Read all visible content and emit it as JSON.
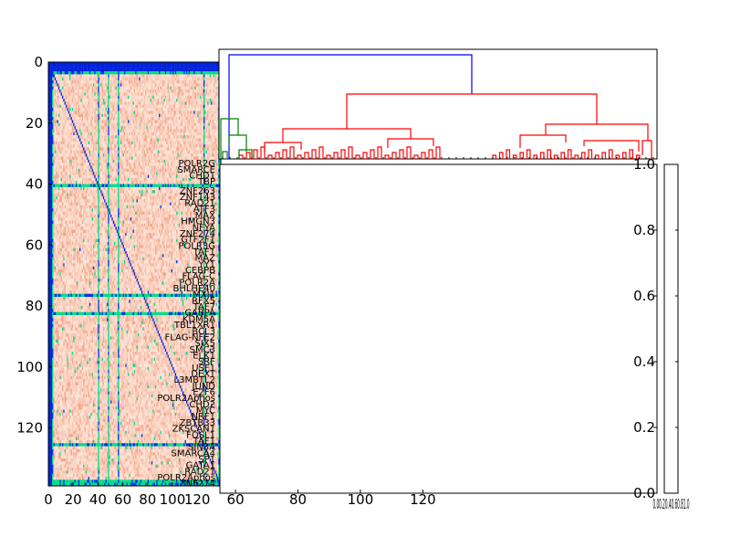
{
  "chart_data": [
    {
      "type": "heatmap",
      "name": "correlation-matrix",
      "n": 139,
      "xlim": [
        0,
        139
      ],
      "ylim": [
        0,
        139
      ],
      "xticks": [
        0,
        20,
        40,
        60,
        80,
        100,
        120
      ],
      "yticks": [
        0,
        20,
        40,
        60,
        80,
        100,
        120
      ],
      "colors": {
        "base": "#f8c6b3",
        "light": "#fce3d6",
        "mid": "#f4a68b",
        "pale": "#fbd8c7",
        "hi_green": "#00dd88",
        "hi_blue": "#0033ee",
        "diag": "#0022dd",
        "red": "#cc1010",
        "dark": "#0000aa"
      },
      "highlight_rows": [
        3,
        40,
        76,
        82,
        125,
        137,
        138
      ],
      "highlight_cols": [
        3,
        40,
        48,
        56,
        125,
        137,
        138
      ],
      "row_labels": [
        {
          "row": 33,
          "text": "POLR2G"
        },
        {
          "row": 35,
          "text": "SMARCE"
        },
        {
          "row": 37,
          "text": "CHD1"
        },
        {
          "row": 39,
          "text": "TBP"
        },
        {
          "row": 42,
          "text": "ZNF263"
        },
        {
          "row": 44,
          "text": "ZNF143"
        },
        {
          "row": 46,
          "text": "RAD21"
        },
        {
          "row": 48,
          "text": "ATF3"
        },
        {
          "row": 50,
          "text": "MAX"
        },
        {
          "row": 52,
          "text": "HMGN3"
        },
        {
          "row": 54,
          "text": "NFYA"
        },
        {
          "row": 56,
          "text": "ZNF274"
        },
        {
          "row": 58,
          "text": "GTF2F1"
        },
        {
          "row": 60,
          "text": "POLR3G"
        },
        {
          "row": 62,
          "text": "TAF1"
        },
        {
          "row": 64,
          "text": "MAZ"
        },
        {
          "row": 66,
          "text": "YY1"
        },
        {
          "row": 68,
          "text": "CEBPB"
        },
        {
          "row": 70,
          "text": "FLAG-C"
        },
        {
          "row": 72,
          "text": "POLR2A"
        },
        {
          "row": 74,
          "text": "BHLHE40"
        },
        {
          "row": 76,
          "text": "MXI1"
        },
        {
          "row": 78,
          "text": "RFX5"
        },
        {
          "row": 80,
          "text": "TAF7"
        },
        {
          "row": 82,
          "text": "GABPA"
        },
        {
          "row": 84,
          "text": "KDM5A"
        },
        {
          "row": 86,
          "text": "TBL1XR1"
        },
        {
          "row": 88,
          "text": "BCL3"
        },
        {
          "row": 90,
          "text": "FLAG-NFE2"
        },
        {
          "row": 92,
          "text": "SIX5"
        },
        {
          "row": 94,
          "text": "SMC3"
        },
        {
          "row": 96,
          "text": "ELK1"
        },
        {
          "row": 98,
          "text": "SRF"
        },
        {
          "row": 100,
          "text": "USF1"
        },
        {
          "row": 102,
          "text": "DEXT"
        },
        {
          "row": 104,
          "text": "L3MBTL2"
        },
        {
          "row": 106,
          "text": "JUND"
        },
        {
          "row": 108,
          "text": "E2F6"
        },
        {
          "row": 110,
          "text": "POLR2Aphos"
        },
        {
          "row": 112,
          "text": "CHD2"
        },
        {
          "row": 114,
          "text": "MYC"
        },
        {
          "row": 116,
          "text": "NRF1"
        },
        {
          "row": 118,
          "text": "ZBTB33"
        },
        {
          "row": 120,
          "text": "ZKSCAN1"
        },
        {
          "row": 122,
          "text": "FOSL1"
        },
        {
          "row": 124,
          "text": "TAF1"
        },
        {
          "row": 126,
          "text": "SIN3A"
        },
        {
          "row": 128,
          "text": "SMARCA4"
        },
        {
          "row": 130,
          "text": "SP1"
        },
        {
          "row": 132,
          "text": "GATA1"
        },
        {
          "row": 134,
          "text": "RAD21"
        },
        {
          "row": 136,
          "text": "POLR2Aphos"
        },
        {
          "row": 138,
          "text": "ZNF274"
        }
      ]
    },
    {
      "type": "dendrogram",
      "name": "column-dendrogram",
      "colors": {
        "blue": "#0000ff",
        "red": "#ff0000",
        "green": "#008000"
      }
    },
    {
      "type": "line",
      "name": "empty-main-axes",
      "xticks": [
        60,
        80,
        100,
        120
      ],
      "xlim": [
        55,
        195
      ],
      "ylim": [
        0.0,
        1.0
      ],
      "yticks": [
        "0.0",
        "0.2",
        "0.4",
        "0.6",
        "0.8",
        "1.0"
      ]
    },
    {
      "type": "colorbar",
      "name": "colorbar",
      "tick_text": "0.00.20.40.60.81.0"
    }
  ]
}
